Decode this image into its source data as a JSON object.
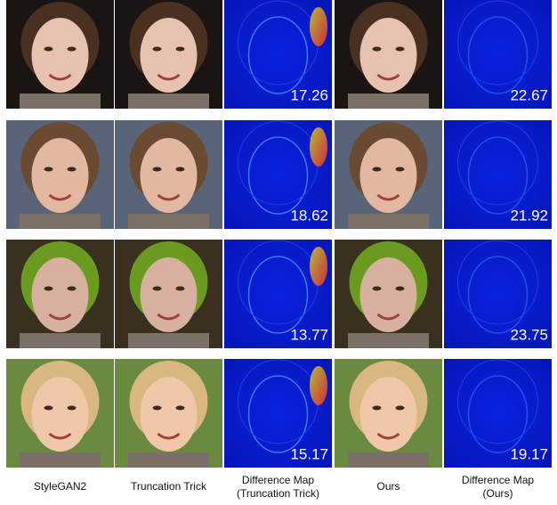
{
  "columns": [
    {
      "lines": [
        "StyleGAN2"
      ]
    },
    {
      "lines": [
        "Truncation Trick"
      ]
    },
    {
      "lines": [
        "Difference Map",
        "(Truncation Trick)"
      ]
    },
    {
      "lines": [
        "Ours"
      ]
    },
    {
      "lines": [
        "Difference Map",
        "(Ours)"
      ]
    }
  ],
  "rows": [
    {
      "truncation_score": 17.26,
      "ours_score": 22.67
    },
    {
      "truncation_score": 18.62,
      "ours_score": 21.92
    },
    {
      "truncation_score": 13.77,
      "ours_score": 23.75
    },
    {
      "truncation_score": 15.17,
      "ours_score": 19.17
    }
  ]
}
